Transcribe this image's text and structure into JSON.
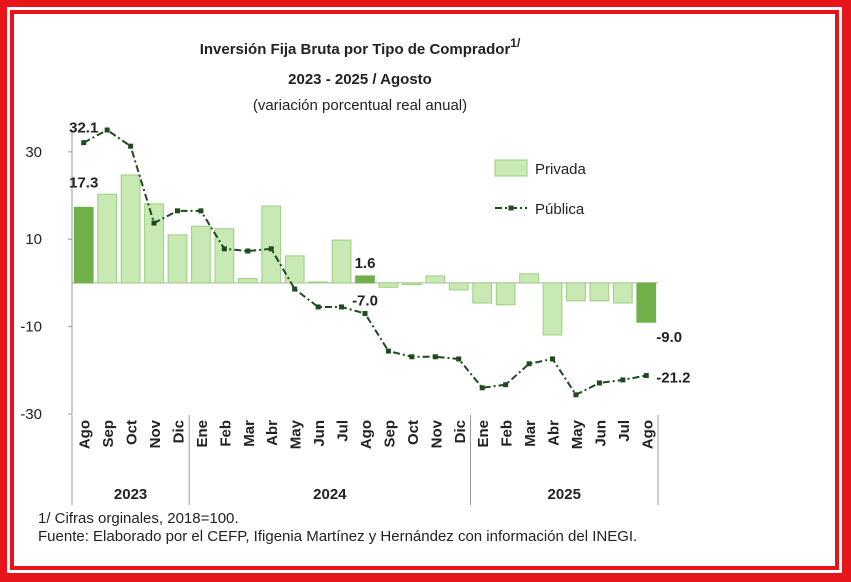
{
  "chart_data": {
    "type": "bar-line",
    "title": "Inversión Fija Bruta por Tipo de Comprador",
    "title_note": "1/",
    "subtitle": "2023 - 2025 / Agosto",
    "subtitle2": "(variación porcentual real anual)",
    "categories": [
      "Ago",
      "Sep",
      "Oct",
      "Nov",
      "Dic",
      "Ene",
      "Feb",
      "Mar",
      "Abr",
      "May",
      "Jun",
      "Jul",
      "Ago",
      "Sep",
      "Oct",
      "Nov",
      "Dic",
      "Ene",
      "Feb",
      "Mar",
      "Abr",
      "May",
      "Jun",
      "Jul",
      "Ago"
    ],
    "years": [
      "2023",
      null,
      null,
      null,
      null,
      "2024",
      null,
      null,
      null,
      null,
      null,
      null,
      null,
      null,
      null,
      null,
      null,
      "2025",
      null,
      null,
      null,
      null,
      null,
      null,
      null
    ],
    "series": [
      {
        "name": "Privada",
        "type": "bar",
        "color": "#c8e8b4",
        "highlight_color": "#6fb04a",
        "label_color": "#86bd5a",
        "values": [
          17.3,
          20.3,
          24.7,
          18.1,
          11.0,
          13.0,
          12.4,
          1.0,
          17.6,
          6.2,
          0.2,
          9.8,
          1.6,
          -1.0,
          -0.4,
          1.6,
          -1.6,
          -4.6,
          -5.0,
          2.1,
          -11.9,
          -4.1,
          -4.1,
          -4.6,
          -9.0
        ],
        "value_labels": [
          "17.3",
          null,
          null,
          null,
          null,
          null,
          null,
          null,
          null,
          null,
          null,
          null,
          "1.6",
          null,
          null,
          null,
          null,
          null,
          null,
          null,
          null,
          null,
          null,
          null,
          "-9.0"
        ]
      },
      {
        "name": "Pública",
        "type": "line",
        "color": "#1f4a1f",
        "label_color": "#1f3f1f",
        "values": [
          32.1,
          35.0,
          31.3,
          13.7,
          16.5,
          16.5,
          7.8,
          7.3,
          7.8,
          -1.4,
          -5.5,
          -5.5,
          -7.0,
          -15.6,
          -16.9,
          -16.9,
          -17.4,
          -24.0,
          -23.3,
          -18.5,
          -17.4,
          -25.6,
          -22.9,
          -22.2,
          -21.2
        ],
        "value_labels": [
          "32.1",
          null,
          null,
          null,
          null,
          null,
          null,
          null,
          null,
          null,
          null,
          null,
          "-7.0",
          null,
          null,
          null,
          null,
          null,
          null,
          null,
          null,
          null,
          null,
          null,
          "-21.2"
        ]
      }
    ],
    "ylim": [
      -30,
      35
    ],
    "yticks": [
      30,
      10,
      -10,
      -30
    ],
    "note": "1/ Cifras orginales, 2018=100.",
    "source": "Fuente: Elaborado por el CEFP, Ifigenia Martínez y Hernández con información del INEGI."
  }
}
